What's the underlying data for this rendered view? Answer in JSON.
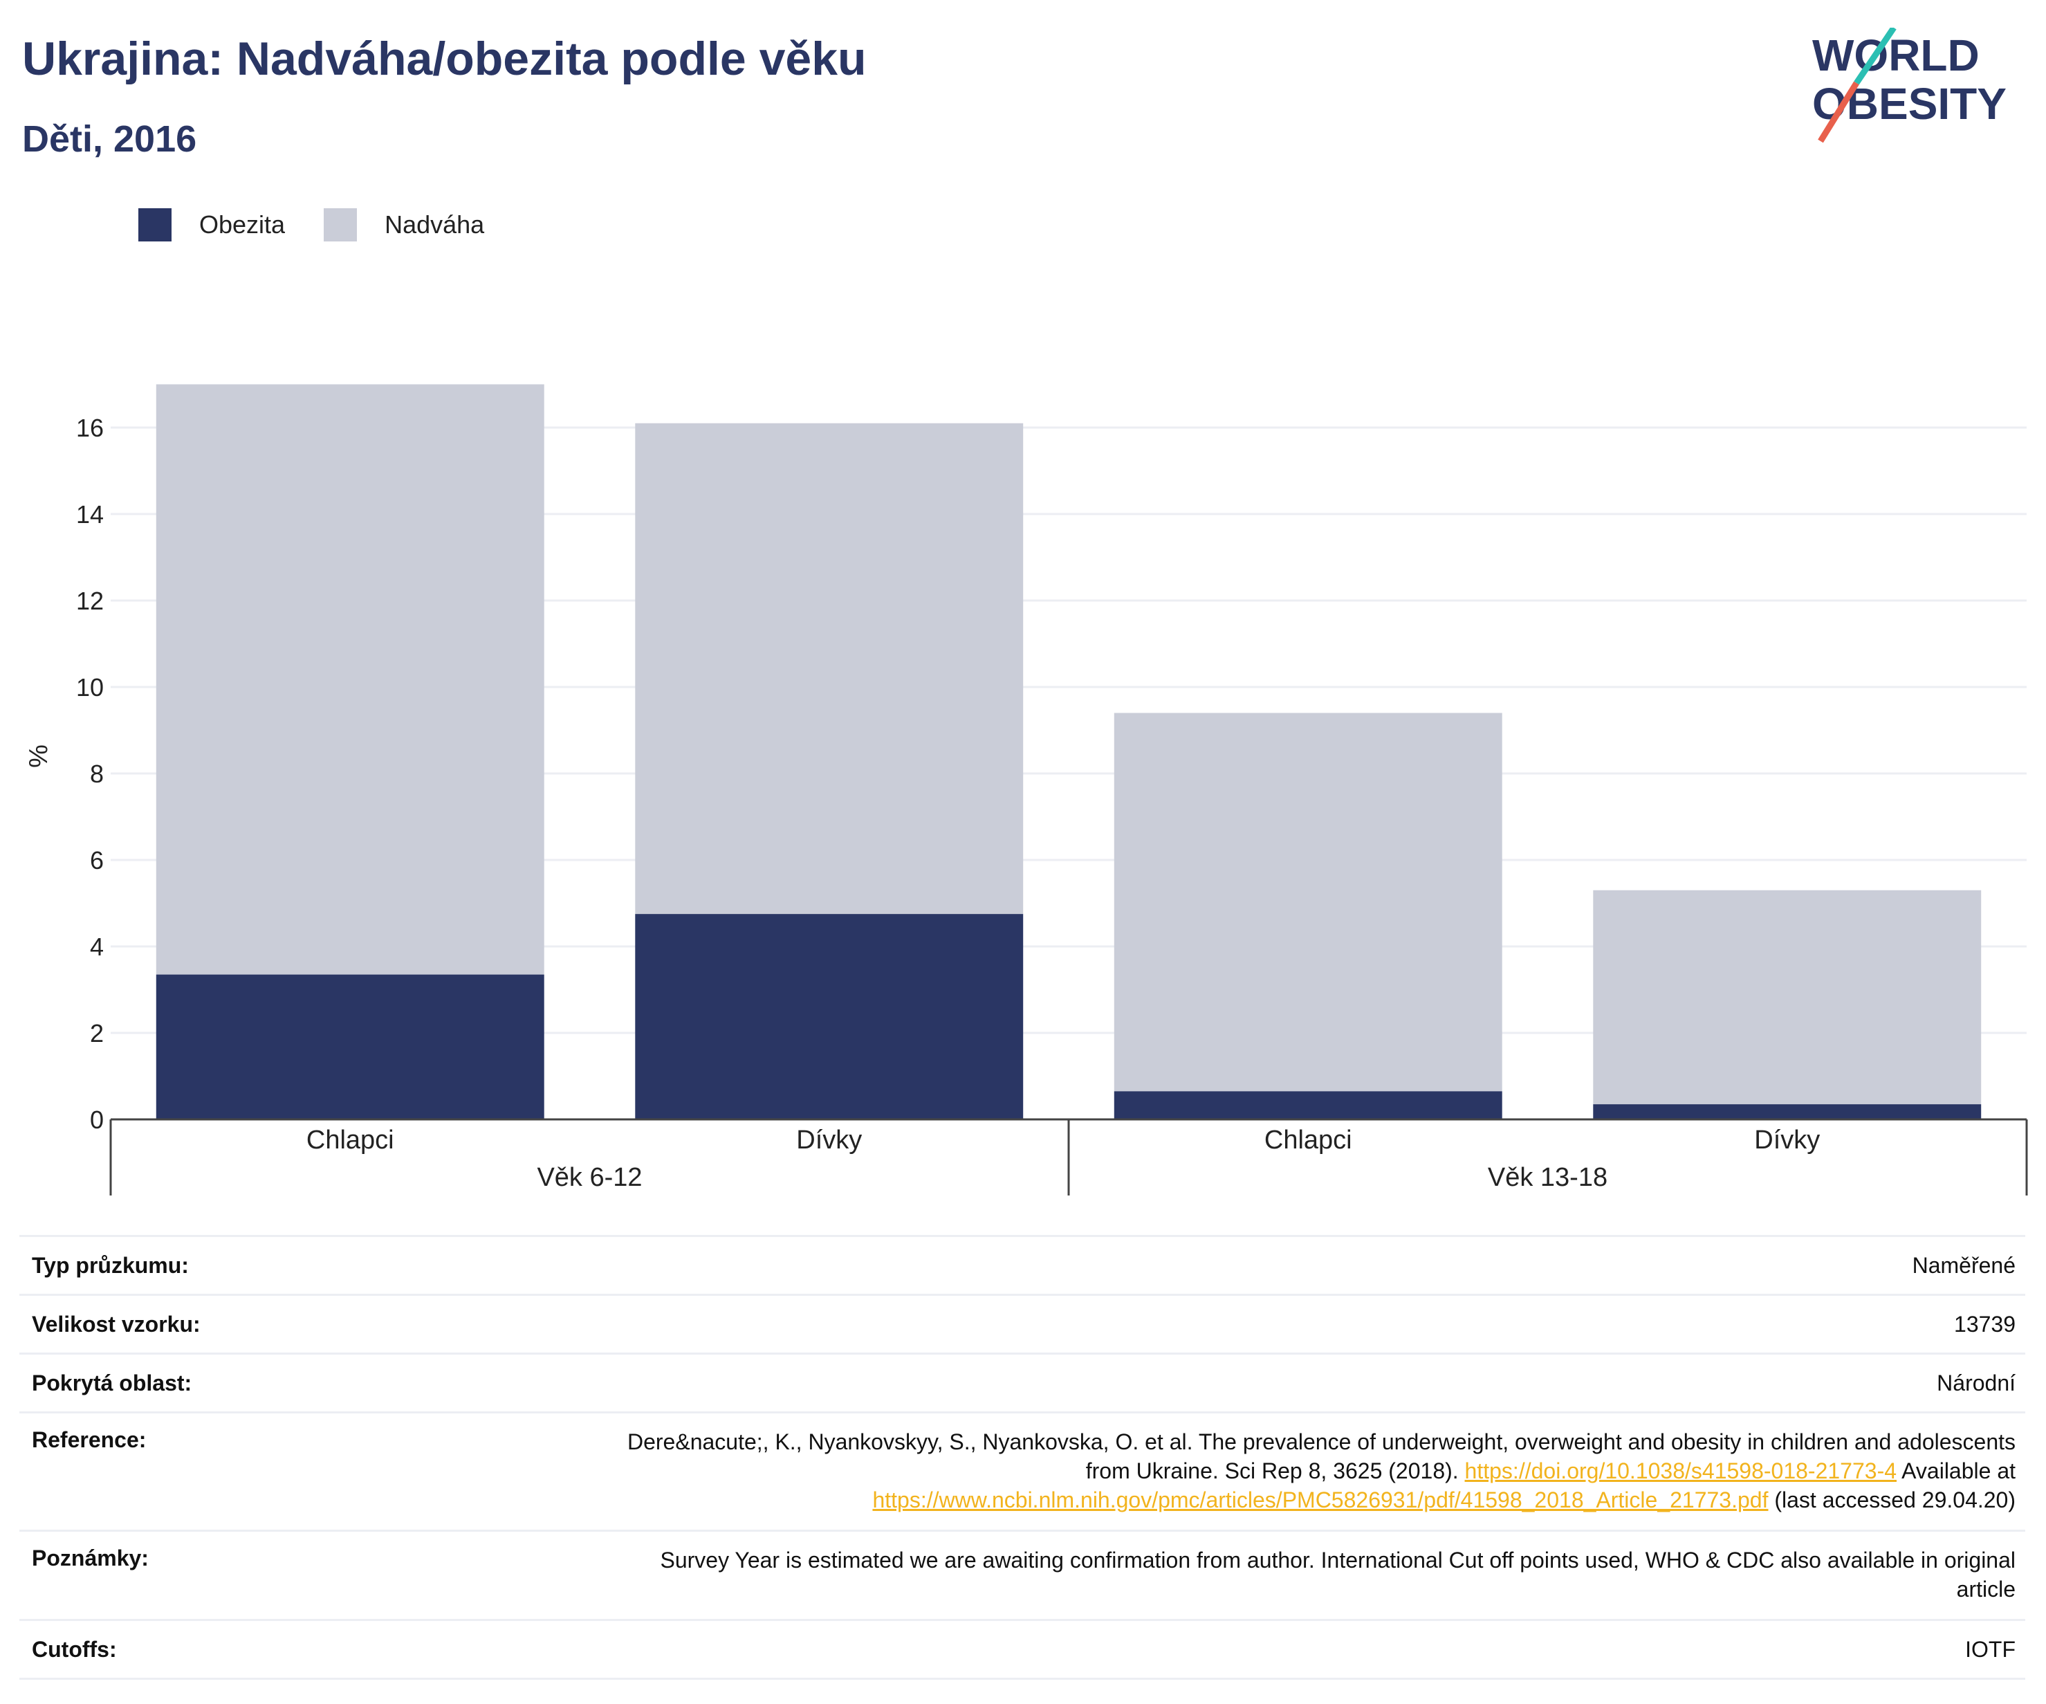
{
  "header": {
    "title": "Ukrajina: Nadváha/obezita podle věku",
    "subtitle": "Děti, 2016"
  },
  "logo": {
    "line1": "WORLD",
    "line2": "OBESITY",
    "colors": {
      "text": "#2a3664",
      "slash_top": "#2bbfb3",
      "slash_bottom": "#e8604c"
    }
  },
  "colors": {
    "obesity": "#2a3664",
    "overweight": "#cacdd8",
    "gridline": "#eceef3",
    "axis": "#444444",
    "link": "#f2b31d"
  },
  "chart_data": {
    "type": "bar",
    "stacked": true,
    "ylabel": "%",
    "ylim": [
      0,
      17.6
    ],
    "yticks": [
      0,
      2,
      4,
      6,
      8,
      10,
      12,
      14,
      16
    ],
    "grid": true,
    "legend_position": "top-left",
    "groups": [
      {
        "label": "Věk 6-12",
        "categories": [
          "Chlapci",
          "Dívky"
        ]
      },
      {
        "label": "Věk 13-18",
        "categories": [
          "Chlapci",
          "Dívky"
        ]
      }
    ],
    "categories": [
      "Chlapci",
      "Dívky",
      "Chlapci",
      "Dívky"
    ],
    "series": [
      {
        "name": "Obezita",
        "values": [
          3.35,
          4.75,
          0.65,
          0.35
        ]
      },
      {
        "name": "Nadváha",
        "values": [
          13.65,
          11.35,
          8.75,
          4.95
        ]
      }
    ]
  },
  "info": {
    "rows": [
      {
        "label": "Typ průzkumu:",
        "value": "Naměřené"
      },
      {
        "label": "Velikost vzorku:",
        "value": "13739"
      },
      {
        "label": "Pokrytá oblast:",
        "value": "Národní"
      }
    ],
    "reference": {
      "label": "Reference:",
      "text1": "Dere&nacute;, K., Nyankovskyy, S., Nyankovska, O. et al. The prevalence of underweight, overweight and obesity in children and adolescents from Ukraine. Sci Rep 8, 3625 (2018).",
      "link1": "https://doi.org/10.1038/s41598-018-21773-4",
      "text2": "Available at",
      "link2": "https://www.ncbi.nlm.nih.gov/pmc/articles/PMC5826931/pdf/41598_2018_Article_21773.pdf",
      "text3": "(last accessed 29.04.20)"
    },
    "notes": {
      "label": "Poznámky:",
      "value": "Survey Year is estimated we are awaiting confirmation from author. International Cut off points used, WHO & CDC also available in original article"
    },
    "cutoffs": {
      "label": "Cutoffs:",
      "value": "IOTF"
    }
  }
}
